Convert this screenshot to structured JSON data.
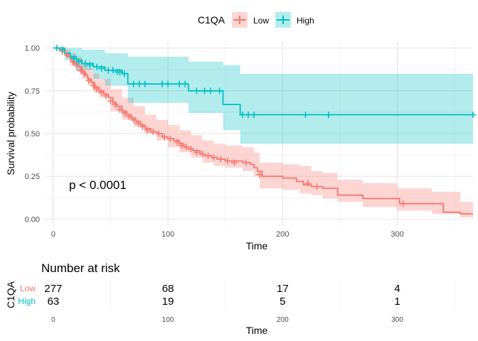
{
  "chart_data": {
    "type": "line",
    "subtype": "kaplan-meier survival curve",
    "legend": {
      "title": "C1QA",
      "position": "top",
      "entries": [
        {
          "name": "Low",
          "color": "#F8766D"
        },
        {
          "name": "High",
          "color": "#00BFC4"
        }
      ]
    },
    "xlabel": "Time",
    "ylabel": "Survival probability",
    "xlim": [
      -8,
      366
    ],
    "ylim": [
      -0.04,
      1.04
    ],
    "xticks": [
      0,
      100,
      200,
      300
    ],
    "yticks": [
      0,
      0.25,
      0.5,
      0.75,
      1.0
    ],
    "ytick_labels": [
      "0.00",
      "0.25",
      "0.50",
      "0.75",
      "1.00"
    ],
    "grid": true,
    "annotation": "p < 0.0001",
    "series": [
      {
        "name": "Low",
        "color": "#F8766D",
        "steps": [
          [
            0,
            1.0
          ],
          [
            5,
            0.99
          ],
          [
            10,
            0.97
          ],
          [
            13,
            0.95
          ],
          [
            15,
            0.93
          ],
          [
            18,
            0.91
          ],
          [
            22,
            0.89
          ],
          [
            25,
            0.86
          ],
          [
            28,
            0.84
          ],
          [
            30,
            0.82
          ],
          [
            33,
            0.8
          ],
          [
            36,
            0.77
          ],
          [
            40,
            0.75
          ],
          [
            44,
            0.73
          ],
          [
            48,
            0.71
          ],
          [
            52,
            0.68
          ],
          [
            55,
            0.66
          ],
          [
            60,
            0.63
          ],
          [
            64,
            0.61
          ],
          [
            68,
            0.59
          ],
          [
            72,
            0.57
          ],
          [
            76,
            0.55
          ],
          [
            80,
            0.53
          ],
          [
            85,
            0.51
          ],
          [
            90,
            0.5
          ],
          [
            95,
            0.48
          ],
          [
            100,
            0.47
          ],
          [
            105,
            0.46
          ],
          [
            110,
            0.44
          ],
          [
            114,
            0.42
          ],
          [
            118,
            0.41
          ],
          [
            122,
            0.4
          ],
          [
            128,
            0.38
          ],
          [
            132,
            0.37
          ],
          [
            138,
            0.36
          ],
          [
            143,
            0.35
          ],
          [
            150,
            0.34
          ],
          [
            165,
            0.33
          ],
          [
            172,
            0.32
          ],
          [
            175,
            0.3
          ],
          [
            178,
            0.28
          ],
          [
            182,
            0.25
          ],
          [
            200,
            0.24
          ],
          [
            212,
            0.22
          ],
          [
            218,
            0.2
          ],
          [
            225,
            0.19
          ],
          [
            235,
            0.18
          ],
          [
            248,
            0.14
          ],
          [
            270,
            0.12
          ],
          [
            302,
            0.09
          ],
          [
            340,
            0.04
          ],
          [
            355,
            0.03
          ]
        ],
        "ci_upper": [
          [
            0,
            1.0
          ],
          [
            5,
            1.0
          ],
          [
            10,
            0.99
          ],
          [
            15,
            0.97
          ],
          [
            20,
            0.95
          ],
          [
            25,
            0.91
          ],
          [
            30,
            0.88
          ],
          [
            35,
            0.85
          ],
          [
            40,
            0.82
          ],
          [
            50,
            0.76
          ],
          [
            60,
            0.71
          ],
          [
            70,
            0.66
          ],
          [
            80,
            0.61
          ],
          [
            90,
            0.58
          ],
          [
            100,
            0.55
          ],
          [
            110,
            0.52
          ],
          [
            120,
            0.49
          ],
          [
            130,
            0.46
          ],
          [
            140,
            0.44
          ],
          [
            150,
            0.43
          ],
          [
            165,
            0.42
          ],
          [
            175,
            0.39
          ],
          [
            180,
            0.33
          ],
          [
            200,
            0.32
          ],
          [
            215,
            0.31
          ],
          [
            225,
            0.28
          ],
          [
            235,
            0.27
          ],
          [
            248,
            0.23
          ],
          [
            270,
            0.21
          ],
          [
            300,
            0.18
          ],
          [
            330,
            0.16
          ],
          [
            355,
            0.1
          ],
          [
            366,
            0.1
          ]
        ],
        "ci_lower": [
          [
            0,
            1.0
          ],
          [
            5,
            0.98
          ],
          [
            10,
            0.95
          ],
          [
            15,
            0.9
          ],
          [
            20,
            0.86
          ],
          [
            25,
            0.82
          ],
          [
            30,
            0.78
          ],
          [
            35,
            0.74
          ],
          [
            40,
            0.71
          ],
          [
            50,
            0.63
          ],
          [
            60,
            0.58
          ],
          [
            70,
            0.54
          ],
          [
            80,
            0.5
          ],
          [
            90,
            0.46
          ],
          [
            100,
            0.42
          ],
          [
            110,
            0.39
          ],
          [
            120,
            0.36
          ],
          [
            130,
            0.33
          ],
          [
            140,
            0.31
          ],
          [
            150,
            0.3
          ],
          [
            165,
            0.28
          ],
          [
            175,
            0.25
          ],
          [
            180,
            0.18
          ],
          [
            200,
            0.17
          ],
          [
            215,
            0.15
          ],
          [
            225,
            0.14
          ],
          [
            235,
            0.12
          ],
          [
            248,
            0.1
          ],
          [
            270,
            0.07
          ],
          [
            300,
            0.05
          ],
          [
            330,
            0.03
          ],
          [
            355,
            0.01
          ],
          [
            366,
            0.01
          ]
        ],
        "censored": [
          [
            8,
            0.98
          ],
          [
            12,
            0.96
          ],
          [
            17,
            0.92
          ],
          [
            20,
            0.9
          ],
          [
            24,
            0.87
          ],
          [
            27,
            0.85
          ],
          [
            31,
            0.81
          ],
          [
            35,
            0.78
          ],
          [
            38,
            0.76
          ],
          [
            42,
            0.74
          ],
          [
            46,
            0.72
          ],
          [
            50,
            0.69
          ],
          [
            54,
            0.67
          ],
          [
            58,
            0.64
          ],
          [
            62,
            0.62
          ],
          [
            66,
            0.6
          ],
          [
            70,
            0.58
          ],
          [
            74,
            0.56
          ],
          [
            78,
            0.54
          ],
          [
            82,
            0.52
          ],
          [
            87,
            0.51
          ],
          [
            92,
            0.5
          ],
          [
            97,
            0.48
          ],
          [
            102,
            0.47
          ],
          [
            108,
            0.45
          ],
          [
            112,
            0.43
          ],
          [
            116,
            0.42
          ],
          [
            120,
            0.41
          ],
          [
            125,
            0.39
          ],
          [
            130,
            0.38
          ],
          [
            135,
            0.37
          ],
          [
            140,
            0.36
          ],
          [
            146,
            0.35
          ],
          [
            152,
            0.34
          ],
          [
            158,
            0.33
          ],
          [
            168,
            0.33
          ],
          [
            180,
            0.26
          ],
          [
            222,
            0.21
          ],
          [
            230,
            0.19
          ],
          [
            305,
            0.09
          ]
        ]
      },
      {
        "name": "High",
        "color": "#00BFC4",
        "steps": [
          [
            0,
            1.0
          ],
          [
            10,
            0.97
          ],
          [
            15,
            0.95
          ],
          [
            20,
            0.93
          ],
          [
            25,
            0.91
          ],
          [
            35,
            0.89
          ],
          [
            45,
            0.87
          ],
          [
            60,
            0.85
          ],
          [
            65,
            0.79
          ],
          [
            118,
            0.75
          ],
          [
            148,
            0.67
          ],
          [
            163,
            0.61
          ],
          [
            366,
            0.61
          ]
        ],
        "ci_upper": [
          [
            0,
            1.0
          ],
          [
            10,
            1.0
          ],
          [
            25,
            0.99
          ],
          [
            45,
            0.97
          ],
          [
            65,
            0.95
          ],
          [
            118,
            0.92
          ],
          [
            148,
            0.9
          ],
          [
            163,
            0.85
          ],
          [
            366,
            0.85
          ]
        ],
        "ci_lower": [
          [
            0,
            1.0
          ],
          [
            10,
            0.93
          ],
          [
            20,
            0.87
          ],
          [
            35,
            0.82
          ],
          [
            45,
            0.78
          ],
          [
            65,
            0.68
          ],
          [
            118,
            0.62
          ],
          [
            148,
            0.52
          ],
          [
            163,
            0.44
          ],
          [
            366,
            0.44
          ]
        ],
        "censored": [
          [
            3,
            1.0
          ],
          [
            8,
            0.99
          ],
          [
            18,
            0.94
          ],
          [
            22,
            0.92
          ],
          [
            28,
            0.91
          ],
          [
            32,
            0.9
          ],
          [
            38,
            0.89
          ],
          [
            42,
            0.88
          ],
          [
            48,
            0.87
          ],
          [
            52,
            0.87
          ],
          [
            56,
            0.86
          ],
          [
            58,
            0.86
          ],
          [
            62,
            0.85
          ],
          [
            70,
            0.79
          ],
          [
            75,
            0.79
          ],
          [
            80,
            0.79
          ],
          [
            95,
            0.79
          ],
          [
            100,
            0.79
          ],
          [
            110,
            0.79
          ],
          [
            115,
            0.79
          ],
          [
            125,
            0.75
          ],
          [
            132,
            0.75
          ],
          [
            137,
            0.75
          ],
          [
            145,
            0.75
          ],
          [
            165,
            0.61
          ],
          [
            170,
            0.61
          ],
          [
            175,
            0.61
          ],
          [
            220,
            0.61
          ],
          [
            240,
            0.61
          ],
          [
            366,
            0.61
          ]
        ]
      }
    ],
    "risk_table": {
      "title": "Number at risk",
      "ylabel": "C1QA",
      "xlabel": "Time",
      "times": [
        0,
        100,
        200,
        300
      ],
      "rows": [
        {
          "name": "Low",
          "color": "#F8766D",
          "counts": [
            "277",
            "68",
            "17",
            "4"
          ]
        },
        {
          "name": "High",
          "color": "#00BFC4",
          "counts": [
            "63",
            "19",
            "5",
            "1"
          ]
        }
      ]
    }
  }
}
